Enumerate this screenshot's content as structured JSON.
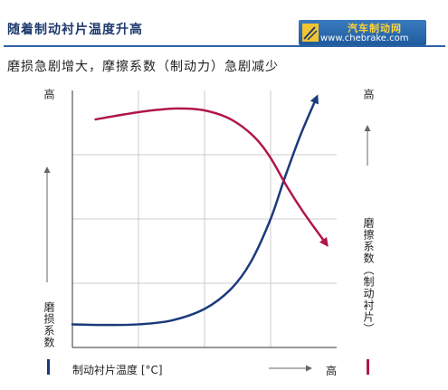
{
  "header": {
    "title": "随着制动衬片温度升高",
    "logo_name": "汽车制动网",
    "logo_url": "www.chebrake.com"
  },
  "subtitle": "磨损急剧增大，摩擦系数（制动力）急剧减少",
  "colors": {
    "wear_curve": "#1a3a7c",
    "friction_curve": "#b0164a",
    "grid": "#cccccc",
    "header_rule": "#2f63a5"
  },
  "chart_data": {
    "type": "line",
    "title": "",
    "xlabel": "制动衬片温度 [°C]",
    "x_high_label": "高",
    "y_left_label": "磨损系数",
    "y_left_high_label": "高",
    "y_right_label": "磨擦系数（制动衬片）",
    "y_right_high_label": "高",
    "xlim": [
      0,
      4
    ],
    "ylim": [
      0,
      4
    ],
    "grid": true,
    "series": [
      {
        "name": "磨损系数",
        "color": "#1a3a7c",
        "x": [
          0,
          0.5,
          1.0,
          1.5,
          2.0,
          2.4,
          2.7,
          3.0,
          3.2,
          3.45,
          3.7
        ],
        "y": [
          0.36,
          0.35,
          0.36,
          0.42,
          0.6,
          0.91,
          1.33,
          2.0,
          2.6,
          3.3,
          3.9
        ]
      },
      {
        "name": "磨擦系数（制动衬片）",
        "color": "#b0164a",
        "x": [
          0.35,
          0.8,
          1.2,
          1.6,
          2.0,
          2.4,
          2.75,
          3.0,
          3.25,
          3.5,
          3.85
        ],
        "y": [
          3.55,
          3.63,
          3.69,
          3.72,
          3.69,
          3.55,
          3.28,
          2.95,
          2.5,
          2.1,
          1.6
        ]
      }
    ]
  }
}
